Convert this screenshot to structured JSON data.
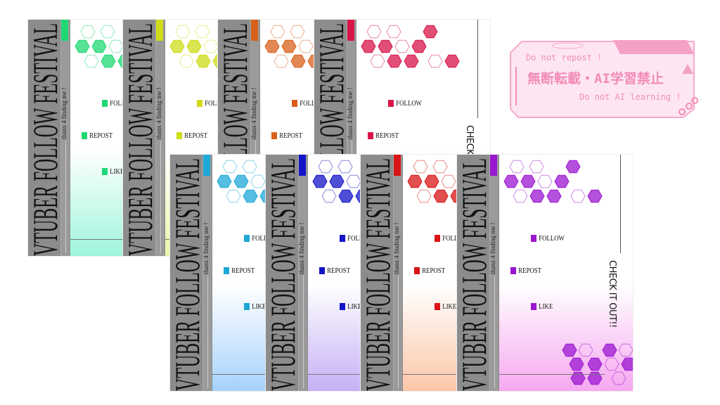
{
  "title": "VTUBER FOLLOW FESTIVAL",
  "tagline": "thanx 4 finding me !",
  "actions": [
    "FOLLOW",
    "REPOST",
    "LIKE"
  ],
  "cta": "CHECK IT OUT!!",
  "cards": [
    {
      "accent": "#1fd873",
      "tint": "#9ff5dc"
    },
    {
      "accent": "#cfdc18",
      "tint": "#e8f7a8"
    },
    {
      "accent": "#d8601c",
      "tint": "#fbd0b0"
    },
    {
      "accent": "#d81448",
      "tint": "#fac2cf"
    },
    {
      "accent": "#1ea8d8",
      "tint": "#a6d2fb"
    },
    {
      "accent": "#1414c8",
      "tint": "#c5b0f5"
    },
    {
      "accent": "#d81414",
      "tint": "#fcc6a8"
    },
    {
      "accent": "#9b16d0",
      "tint": "#f6a8f0"
    }
  ],
  "notice": {
    "line1": "Do not repost !",
    "line2": "無断転載・AI学習禁止",
    "line3": "Do not AI learning !",
    "color": "#f28cb8"
  }
}
